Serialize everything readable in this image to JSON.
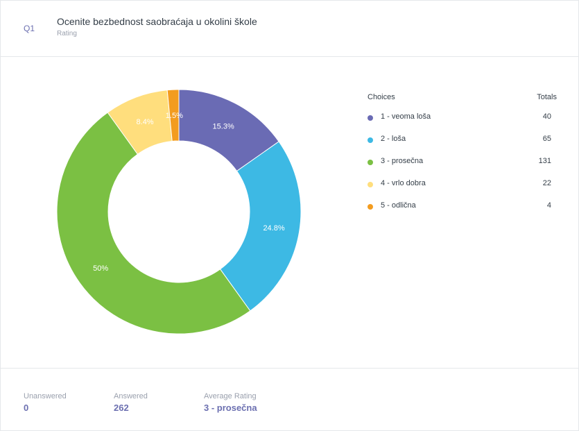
{
  "question": {
    "number": "Q1",
    "title": "Ocenite bezbednost saobraćaja u okolini škole",
    "type": "Rating"
  },
  "legend": {
    "choices_header": "Choices",
    "totals_header": "Totals"
  },
  "chart_data": {
    "type": "pie",
    "donut": true,
    "categories": [
      "1 - veoma loša",
      "2 - loša",
      "3 - prosečna",
      "4 - vrlo dobra",
      "5 - odlična"
    ],
    "values": [
      40,
      65,
      131,
      22,
      4
    ],
    "percent_labels": [
      "15.3%",
      "24.8%",
      "50%",
      "8.4%",
      "1.5%"
    ],
    "colors": [
      "#6a6bb4",
      "#3db9e4",
      "#7bc043",
      "#ffde7d",
      "#f39c1f"
    ]
  },
  "stats": {
    "unanswered_label": "Unanswered",
    "unanswered_value": "0",
    "answered_label": "Answered",
    "answered_value": "262",
    "average_label": "Average Rating",
    "average_value": "3 - prosečna"
  }
}
